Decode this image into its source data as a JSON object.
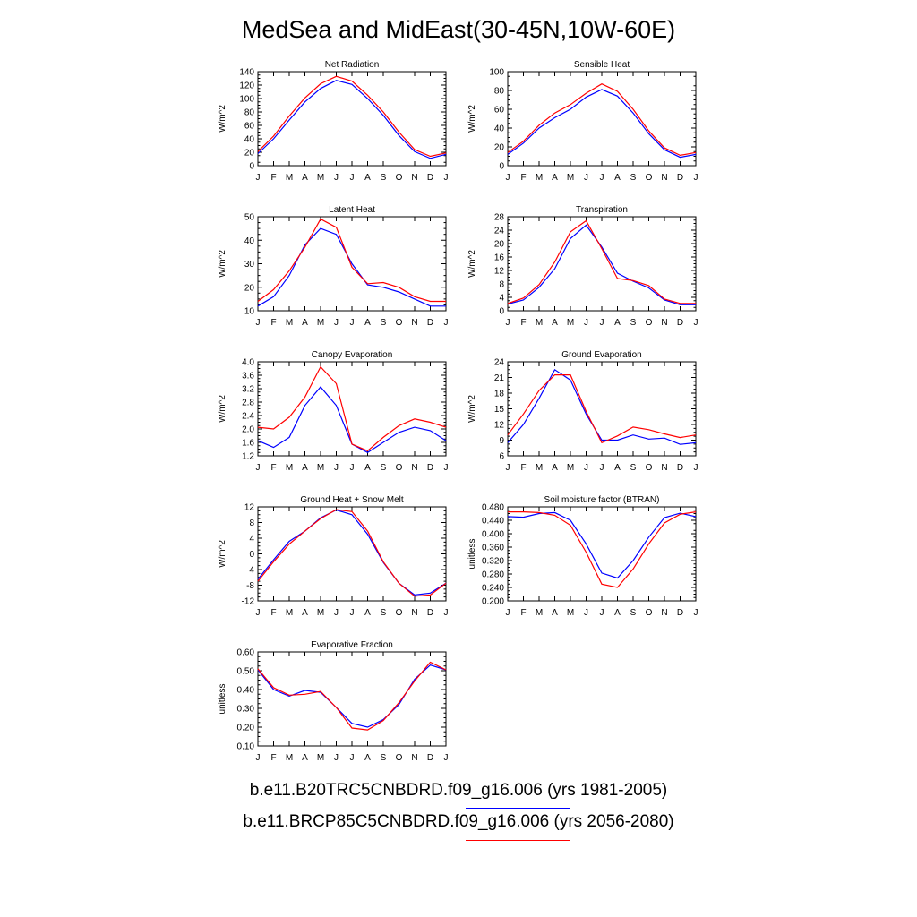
{
  "title": "MedSea and MidEast(30-45N,10W-60E)",
  "legend": [
    {
      "label": "b.e11.B20TRC5CNBDRD.f09_g16.006 (yrs 1981-2005)",
      "color": "#0000ff"
    },
    {
      "label": "b.e11.BRCP85C5CNBDRD.f09_g16.006 (yrs 2056-2080)",
      "color": "#ff0000"
    }
  ],
  "chart_data": [
    {
      "type": "line",
      "title": "Net Radiation",
      "ylabel": "W/m^2",
      "categories": [
        "J",
        "F",
        "M",
        "A",
        "M",
        "J",
        "J",
        "A",
        "S",
        "O",
        "N",
        "D",
        "J"
      ],
      "ylim": [
        0,
        140
      ],
      "yticks": [
        "0",
        "20",
        "40",
        "60",
        "80",
        "100",
        "120",
        "140"
      ],
      "series": [
        {
          "color": "#0000ff",
          "values": [
            18,
            40,
            68,
            95,
            115,
            127,
            121,
            100,
            75,
            45,
            21,
            11,
            17
          ]
        },
        {
          "color": "#ff0000",
          "values": [
            21,
            44,
            74,
            101,
            122,
            133,
            126,
            105,
            80,
            50,
            24,
            14,
            19
          ]
        }
      ]
    },
    {
      "type": "line",
      "title": "Sensible Heat",
      "ylabel": "W/m^2",
      "categories": [
        "J",
        "F",
        "M",
        "A",
        "M",
        "J",
        "J",
        "A",
        "S",
        "O",
        "N",
        "D",
        "J"
      ],
      "ylim": [
        0,
        100
      ],
      "yticks": [
        "0",
        "20",
        "40",
        "60",
        "80",
        "100"
      ],
      "series": [
        {
          "color": "#0000ff",
          "values": [
            12,
            24,
            40,
            51,
            60,
            73,
            81,
            74,
            56,
            34,
            17,
            9,
            12
          ]
        },
        {
          "color": "#ff0000",
          "values": [
            14,
            26,
            43,
            56,
            65,
            77,
            87,
            79,
            60,
            37,
            19,
            11,
            14
          ]
        }
      ]
    },
    {
      "type": "line",
      "title": "Latent Heat",
      "ylabel": "W/m^2",
      "categories": [
        "J",
        "F",
        "M",
        "A",
        "M",
        "J",
        "J",
        "A",
        "S",
        "O",
        "N",
        "D",
        "J"
      ],
      "ylim": [
        10,
        50
      ],
      "yticks": [
        "10",
        "20",
        "30",
        "40",
        "50"
      ],
      "series": [
        {
          "color": "#0000ff",
          "values": [
            12,
            16,
            25,
            38,
            45,
            42.5,
            30,
            21,
            20,
            18,
            15,
            12,
            12
          ]
        },
        {
          "color": "#ff0000",
          "values": [
            14,
            19,
            27,
            37,
            49,
            45.5,
            28.5,
            21.5,
            22,
            20,
            16,
            14,
            14
          ]
        }
      ]
    },
    {
      "type": "line",
      "title": "Transpiration",
      "ylabel": "W/m^2",
      "categories": [
        "J",
        "F",
        "M",
        "A",
        "M",
        "J",
        "J",
        "A",
        "S",
        "O",
        "N",
        "D",
        "J"
      ],
      "ylim": [
        0,
        28
      ],
      "yticks": [
        "0",
        "4",
        "8",
        "12",
        "16",
        "20",
        "24",
        "28"
      ],
      "series": [
        {
          "color": "#0000ff",
          "values": [
            2,
            3.2,
            7,
            12.5,
            21.5,
            25.5,
            19,
            11.2,
            8.8,
            6.8,
            3.2,
            1.8,
            1.8
          ]
        },
        {
          "color": "#ff0000",
          "values": [
            2.2,
            3.8,
            7.8,
            14.5,
            23.5,
            26.8,
            18.5,
            9.6,
            9,
            7.5,
            3.5,
            2.2,
            2.2
          ]
        }
      ]
    },
    {
      "type": "line",
      "title": "Canopy Evaporation",
      "ylabel": "W/m^2",
      "categories": [
        "J",
        "F",
        "M",
        "A",
        "M",
        "J",
        "J",
        "A",
        "S",
        "O",
        "N",
        "D",
        "J"
      ],
      "ylim": [
        1.2,
        4.0
      ],
      "yticks": [
        "1.2",
        "1.6",
        "2.0",
        "2.4",
        "2.8",
        "3.2",
        "3.6",
        "4.0"
      ],
      "series": [
        {
          "color": "#0000ff",
          "values": [
            1.65,
            1.45,
            1.75,
            2.7,
            3.25,
            2.7,
            1.55,
            1.3,
            1.6,
            1.9,
            2.05,
            1.95,
            1.65
          ]
        },
        {
          "color": "#ff0000",
          "values": [
            2.05,
            2.0,
            2.35,
            2.95,
            3.85,
            3.35,
            1.55,
            1.35,
            1.75,
            2.1,
            2.3,
            2.2,
            2.05
          ]
        }
      ]
    },
    {
      "type": "line",
      "title": "Ground Evaporation",
      "ylabel": "W/m^2",
      "categories": [
        "J",
        "F",
        "M",
        "A",
        "M",
        "J",
        "J",
        "A",
        "S",
        "O",
        "N",
        "D",
        "J"
      ],
      "ylim": [
        6,
        24
      ],
      "yticks": [
        "6",
        "9",
        "12",
        "15",
        "18",
        "21",
        "24"
      ],
      "series": [
        {
          "color": "#0000ff",
          "values": [
            8.5,
            12,
            17,
            22.5,
            20.5,
            14,
            9,
            9,
            10,
            9.2,
            9.4,
            8.2,
            8.5
          ]
        },
        {
          "color": "#ff0000",
          "values": [
            10,
            14,
            18.5,
            21.5,
            21.5,
            14.5,
            8.5,
            9.8,
            11.5,
            11,
            10.2,
            9.5,
            10
          ]
        }
      ]
    },
    {
      "type": "line",
      "title": "Ground Heat + Snow Melt",
      "ylabel": "W/m^2",
      "categories": [
        "J",
        "F",
        "M",
        "A",
        "M",
        "J",
        "J",
        "A",
        "S",
        "O",
        "N",
        "D",
        "J"
      ],
      "ylim": [
        -12,
        12
      ],
      "yticks": [
        "-12",
        "-8",
        "-4",
        "0",
        "4",
        "8",
        "12"
      ],
      "series": [
        {
          "color": "#0000ff",
          "values": [
            -6.5,
            -1.5,
            3.2,
            5.8,
            9.2,
            11.2,
            10,
            5,
            -2.2,
            -7.5,
            -10.5,
            -10,
            -7.5
          ]
        },
        {
          "color": "#ff0000",
          "values": [
            -7,
            -2,
            2.5,
            5.8,
            9,
            11.3,
            10.8,
            5.8,
            -2,
            -7.5,
            -10.8,
            -10.5,
            -7.5
          ]
        }
      ]
    },
    {
      "type": "line",
      "title": "Soil moisture factor (BTRAN)",
      "ylabel": "unitless",
      "categories": [
        "J",
        "F",
        "M",
        "A",
        "M",
        "J",
        "J",
        "A",
        "S",
        "O",
        "N",
        "D",
        "J"
      ],
      "ylim": [
        0.2,
        0.48
      ],
      "yticks": [
        "0.200",
        "0.240",
        "0.280",
        "0.320",
        "0.360",
        "0.400",
        "0.440",
        "0.480"
      ],
      "series": [
        {
          "color": "#0000ff",
          "values": [
            0.451,
            0.449,
            0.46,
            0.463,
            0.44,
            0.37,
            0.283,
            0.268,
            0.32,
            0.39,
            0.448,
            0.461,
            0.451
          ]
        },
        {
          "color": "#ff0000",
          "values": [
            0.465,
            0.465,
            0.463,
            0.455,
            0.425,
            0.345,
            0.25,
            0.24,
            0.295,
            0.37,
            0.432,
            0.458,
            0.465
          ]
        }
      ]
    },
    {
      "type": "line",
      "title": "Evaporative Fraction",
      "ylabel": "unitless",
      "categories": [
        "J",
        "F",
        "M",
        "A",
        "M",
        "J",
        "J",
        "A",
        "S",
        "O",
        "N",
        "D",
        "J"
      ],
      "ylim": [
        0.1,
        0.6
      ],
      "yticks": [
        "0.10",
        "0.20",
        "0.30",
        "0.40",
        "0.50",
        "0.60"
      ],
      "series": [
        {
          "color": "#0000ff",
          "values": [
            0.505,
            0.4,
            0.365,
            0.395,
            0.385,
            0.305,
            0.22,
            0.2,
            0.24,
            0.32,
            0.455,
            0.53,
            0.505
          ]
        },
        {
          "color": "#ff0000",
          "values": [
            0.51,
            0.41,
            0.37,
            0.375,
            0.39,
            0.305,
            0.195,
            0.185,
            0.235,
            0.33,
            0.445,
            0.545,
            0.505
          ]
        }
      ]
    }
  ]
}
